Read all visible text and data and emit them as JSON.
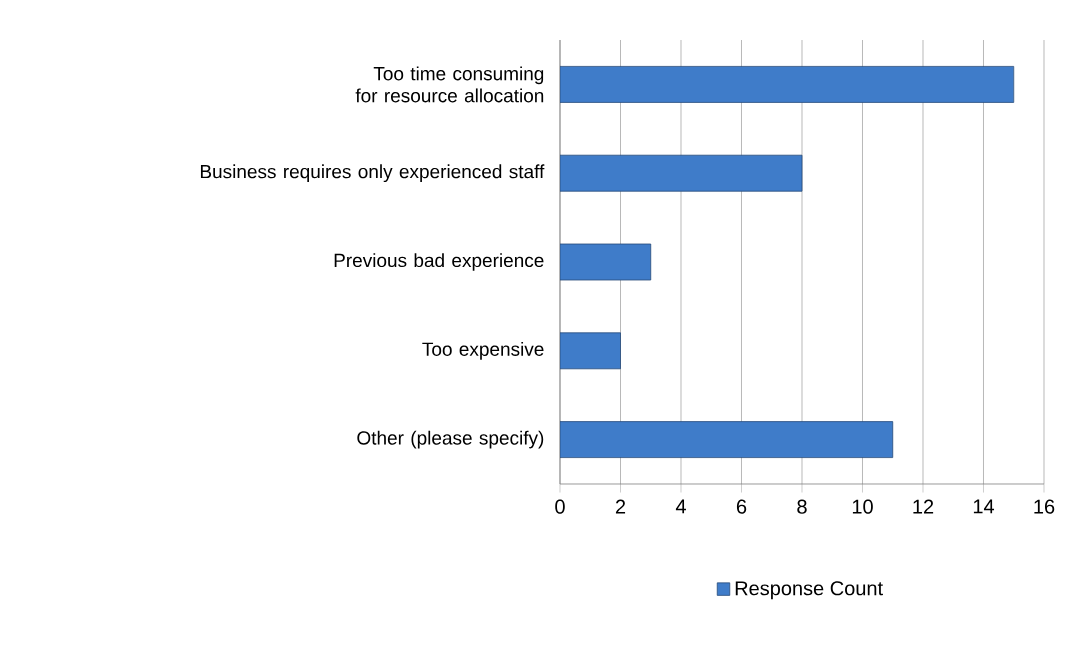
{
  "chart_data": {
    "type": "bar",
    "orientation": "horizontal",
    "categories": [
      "Too time consuming for resource allocation",
      "Business requires only experienced staff",
      "Previous bad experience",
      "Too expensive",
      "Other (please specify)"
    ],
    "series": [
      {
        "name": "Response Count",
        "color": "#3f7cc9",
        "values": [
          15,
          8,
          3,
          2,
          11
        ]
      }
    ],
    "xlim": [
      0,
      16
    ],
    "xticks": [
      0,
      2,
      4,
      6,
      8,
      10,
      12,
      14,
      16
    ],
    "grid": "x",
    "legend": "bottom"
  }
}
